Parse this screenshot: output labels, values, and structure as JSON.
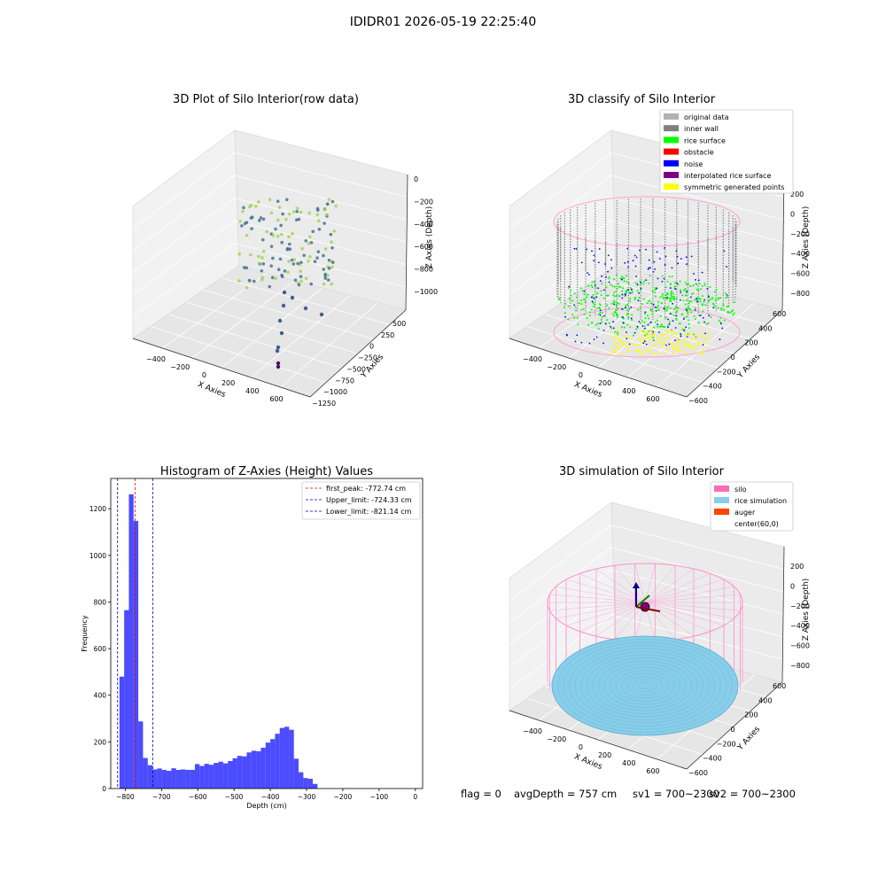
{
  "suptitle": "IDIDR01 2026-05-19 22:25:40",
  "footer": {
    "flag": "flag = 0",
    "avg": "avgDepth = 757 cm",
    "sv1": "sv1 = 700~2300",
    "sv2": "sv2 = 700~2300"
  },
  "panels": {
    "raw": {
      "title": "3D Plot of Silo Interior(row data)",
      "xlabel": "X Axies",
      "ylabel": "Y Axies",
      "zlabel": "Z Axies (Depth)",
      "xticks": [
        "−400",
        "−200",
        "0",
        "200",
        "400",
        "600"
      ],
      "yticks": [
        "500",
        "250",
        "0",
        "−250",
        "−500",
        "−750",
        "−1000",
        "−1250"
      ],
      "zticks": [
        "0",
        "−200",
        "−400",
        "−600",
        "−800",
        "−1000"
      ]
    },
    "classify": {
      "title": "3D classify of Silo Interior",
      "xlabel": "X Axies",
      "ylabel": "Y Axies",
      "zlabel": "Z Axies (Depth)",
      "xticks": [
        "−400",
        "−200",
        "0",
        "200",
        "400",
        "600"
      ],
      "yticks": [
        "600",
        "400",
        "200",
        "0",
        "−200",
        "−400",
        "−600"
      ],
      "zticks": [
        "200",
        "0",
        "−200",
        "−400",
        "−600",
        "−800"
      ],
      "legend": [
        {
          "label": "original data",
          "color": "#b2b2b2"
        },
        {
          "label": "inner wall",
          "color": "#808080"
        },
        {
          "label": "rice surface",
          "color": "#00ff00"
        },
        {
          "label": "obstacle",
          "color": "#ff0000"
        },
        {
          "label": "noise",
          "color": "#0000ff"
        },
        {
          "label": "interpolated rice surface",
          "color": "#800080"
        },
        {
          "label": "symmetric generated points",
          "color": "#ffff00"
        }
      ]
    },
    "simulation": {
      "title": "3D simulation of Silo Interior",
      "xlabel": "X Axies",
      "ylabel": "Y Axies",
      "zlabel": "Z Axies (Depth)",
      "xticks": [
        "−400",
        "−200",
        "0",
        "200",
        "400",
        "600"
      ],
      "yticks": [
        "600",
        "400",
        "200",
        "0",
        "−200",
        "−400",
        "−600"
      ],
      "zticks": [
        "200",
        "0",
        "−200",
        "−400",
        "−600",
        "−800"
      ],
      "legend": [
        {
          "label": "silo",
          "color": "#ff69b4"
        },
        {
          "label": "rice simulation",
          "color": "#87ceeb"
        },
        {
          "label": "auger",
          "color": "#ff4500"
        },
        {
          "label": "center(60,0)",
          "color": ""
        }
      ]
    }
  },
  "chart_data": [
    {
      "type": "bar",
      "title": "Histogram of Z-Axies (Height) Values",
      "xlabel": "Depth (cm)",
      "ylabel": "Frequency",
      "xlim": [
        -840,
        20
      ],
      "ylim": [
        0,
        1330
      ],
      "xticks": [
        -800,
        -700,
        -600,
        -500,
        -400,
        -300,
        -200,
        -100,
        0
      ],
      "yticks": [
        0,
        200,
        400,
        600,
        800,
        1000,
        1200
      ],
      "bin_start": -816,
      "bin_width": 13,
      "values": [
        480,
        765,
        1262,
        1148,
        288,
        131,
        100,
        82,
        86,
        80,
        76,
        87,
        80,
        82,
        80,
        80,
        105,
        97,
        106,
        102,
        110,
        115,
        108,
        118,
        130,
        140,
        138,
        155,
        162,
        160,
        175,
        197,
        212,
        235,
        260,
        265,
        252,
        128,
        70,
        45,
        42,
        20
      ],
      "bar_color": "#0000ff",
      "lines": [
        {
          "label": "first_peak: -772.74 cm",
          "x": -772.74,
          "color": "#ff0000"
        },
        {
          "label": "Upper_limit: -724.33 cm",
          "x": -724.33,
          "color": "#0000aa"
        },
        {
          "label": "Lower_limit: -821.14 cm",
          "x": -821.14,
          "color": "#0000aa"
        }
      ],
      "legend_position": "top-right"
    }
  ]
}
